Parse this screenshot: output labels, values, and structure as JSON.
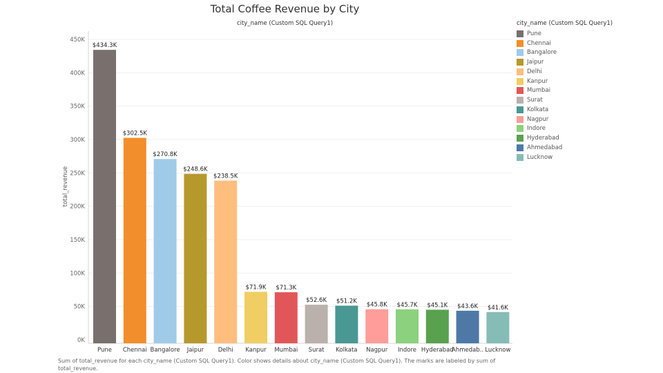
{
  "chart_data": {
    "type": "bar",
    "title": "Total Coffee Revenue by City",
    "subtitle": "city_name (Custom SQL Query1)",
    "xlabel": "",
    "ylabel": "total_revenue",
    "ylim": [
      0,
      450000
    ],
    "yticks": [
      0,
      50000,
      100000,
      150000,
      200000,
      250000,
      300000,
      350000,
      400000,
      450000
    ],
    "ytick_labels": [
      "0K",
      "50K",
      "100K",
      "150K",
      "200K",
      "250K",
      "300K",
      "350K",
      "400K",
      "450K"
    ],
    "grid": true,
    "legend_position": "right",
    "legend_title": "city_name (Custom SQL Query1)",
    "categories": [
      "Pune",
      "Chennai",
      "Bangalore",
      "Jaipur",
      "Delhi",
      "Kanpur",
      "Mumbai",
      "Surat",
      "Kolkata",
      "Nagpur",
      "Indore",
      "Hyderabad",
      "Ahmedab..",
      "Lucknow"
    ],
    "legend_entries": [
      "Pune",
      "Chennai",
      "Bangalore",
      "Jaipur",
      "Delhi",
      "Kanpur",
      "Mumbai",
      "Surat",
      "Kolkata",
      "Nagpur",
      "Indore",
      "Hyderabad",
      "Ahmedabad",
      "Lucknow"
    ],
    "values": [
      434300,
      302500,
      270800,
      248600,
      238500,
      71900,
      71300,
      52600,
      51200,
      45800,
      45700,
      45100,
      43600,
      41600
    ],
    "data_labels": [
      "$434.3K",
      "$302.5K",
      "$270.8K",
      "$248.6K",
      "$238.5K",
      "$71.9K",
      "$71.3K",
      "$52.6K",
      "$51.2K",
      "$45.8K",
      "$45.7K",
      "$45.1K",
      "$43.6K",
      "$41.6K"
    ],
    "colors": [
      "#79706e",
      "#f28e2b",
      "#a0cbe8",
      "#b6992d",
      "#ffbe7d",
      "#f1ce63",
      "#e15759",
      "#bab0ac",
      "#499894",
      "#ff9d9a",
      "#8cd17d",
      "#59a14f",
      "#4e79a7",
      "#86bcb6"
    ]
  },
  "footer_text": "Sum of total_revenue for each city_name (Custom SQL Query1).  Color shows details about city_name (Custom SQL Query1).  The marks are labeled by sum of total_revenue."
}
